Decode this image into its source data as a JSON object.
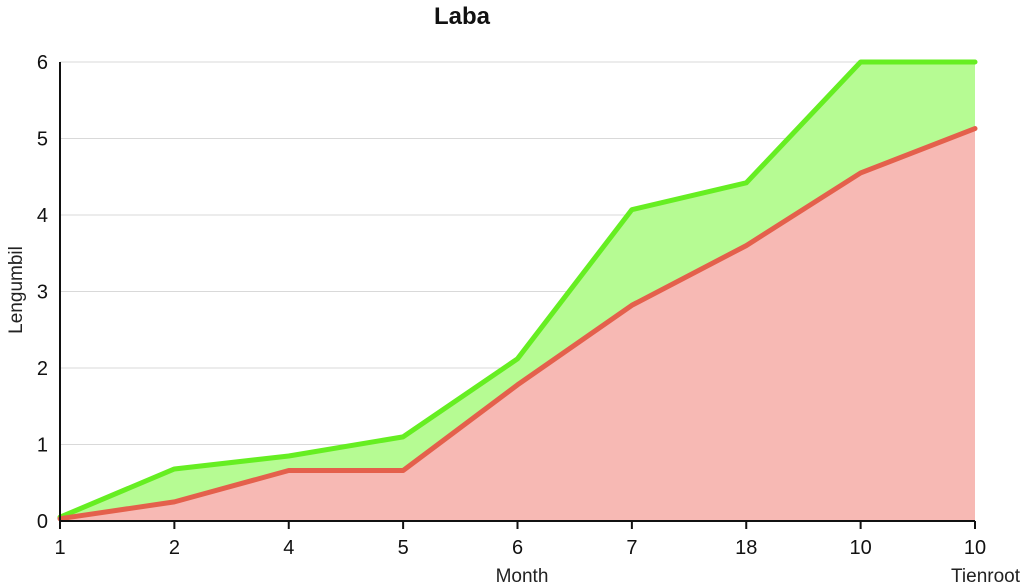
{
  "chart_data": {
    "type": "area",
    "title": "Laba",
    "xlabel": "Month",
    "xlabel_secondary": "Tienroot",
    "ylabel": "Lengumbil",
    "ylim": [
      0,
      6
    ],
    "yticks": [
      "0",
      "1",
      "2",
      "3",
      "4",
      "5",
      "6"
    ],
    "categories": [
      "1",
      "2",
      "4",
      "5",
      "6",
      "7",
      "18",
      "10",
      "10"
    ],
    "grid": true,
    "series": [
      {
        "name": "",
        "color": "#66ee22",
        "fill": "#b6fb93",
        "values": [
          0.05,
          0.68,
          0.85,
          1.1,
          2.12,
          4.07,
          4.42,
          6.0,
          6.0
        ]
      },
      {
        "name": "",
        "color": "#e4604c",
        "fill": "#f7b9b4",
        "values": [
          0.03,
          0.25,
          0.66,
          0.66,
          1.78,
          2.82,
          3.6,
          4.55,
          5.13
        ]
      }
    ]
  }
}
